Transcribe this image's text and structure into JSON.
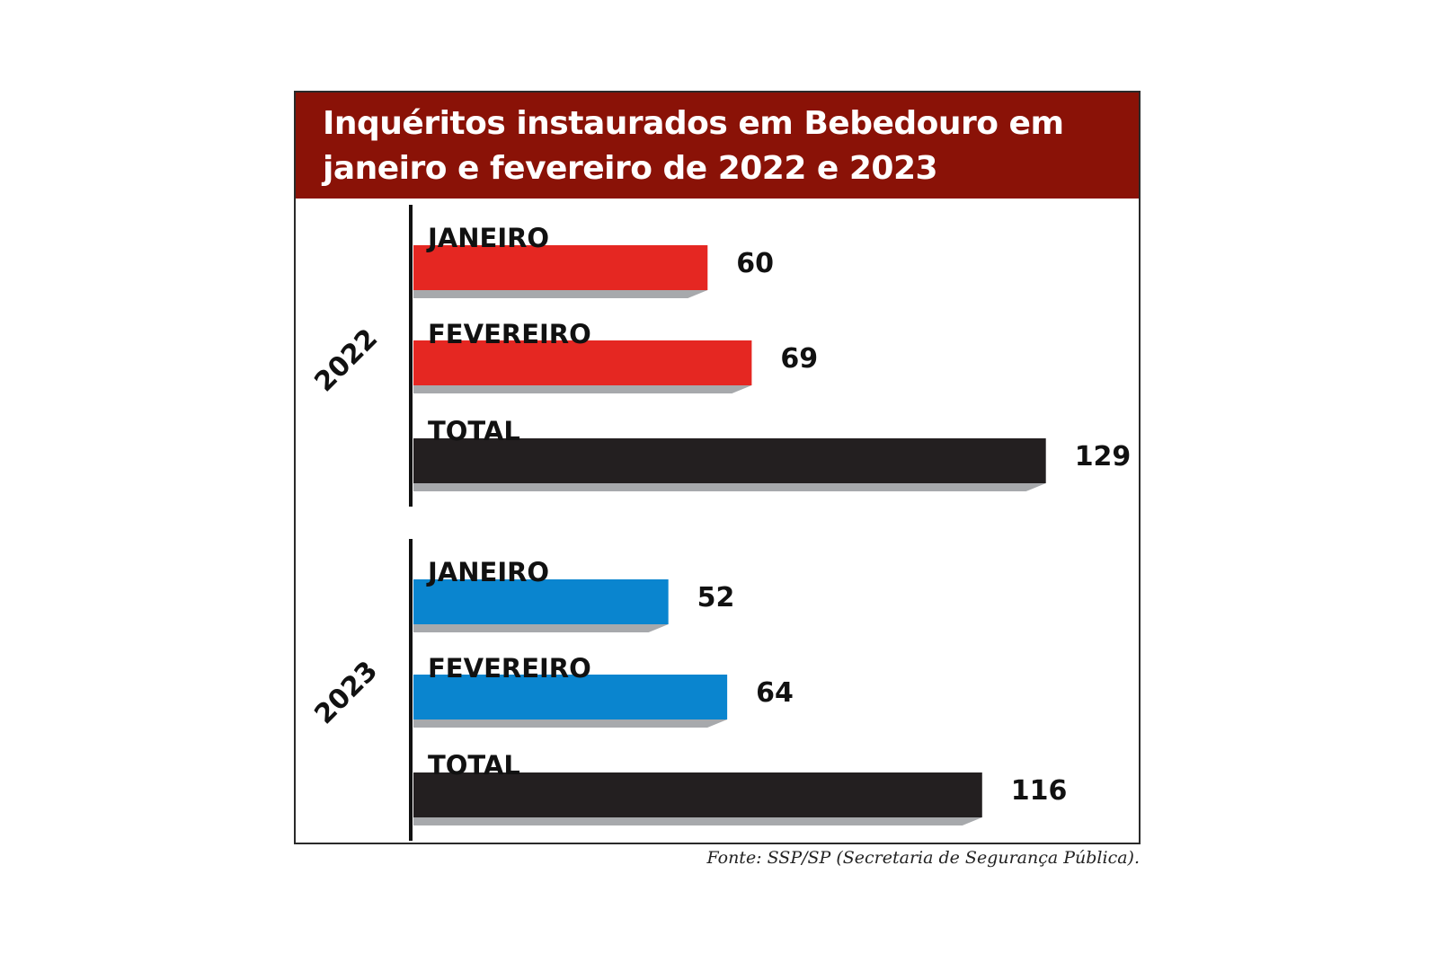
{
  "chart_data": {
    "type": "bar",
    "title_lines": [
      "Inquéritos instaurados em Bebedouro em",
      "janeiro e fevereiro de 2022 e 2023"
    ],
    "groups": [
      {
        "label": "2022",
        "bars": [
          {
            "label": "JANEIRO",
            "value": 60,
            "value_label": "60",
            "color": "#e52722"
          },
          {
            "label": "FEVEREIRO",
            "value": 69,
            "value_label": "69",
            "color": "#e52722"
          },
          {
            "label": "TOTAL",
            "value": 129,
            "value_label": "129",
            "color": "#231f20"
          }
        ]
      },
      {
        "label": "2023",
        "bars": [
          {
            "label": "JANEIRO",
            "value": 52,
            "value_label": "52",
            "color": "#0a85cf"
          },
          {
            "label": "FEVEREIRO",
            "value": 64,
            "value_label": "64",
            "color": "#0a85cf"
          },
          {
            "label": "TOTAL",
            "value": 116,
            "value_label": "116",
            "color": "#231f20"
          }
        ]
      }
    ],
    "colors": {
      "title_background": "#8a1207",
      "shadow": "#a7a9ac",
      "axis": "#111111"
    }
  },
  "source": "Fonte: SSP/SP (Secretaria de Segurança Pública)."
}
